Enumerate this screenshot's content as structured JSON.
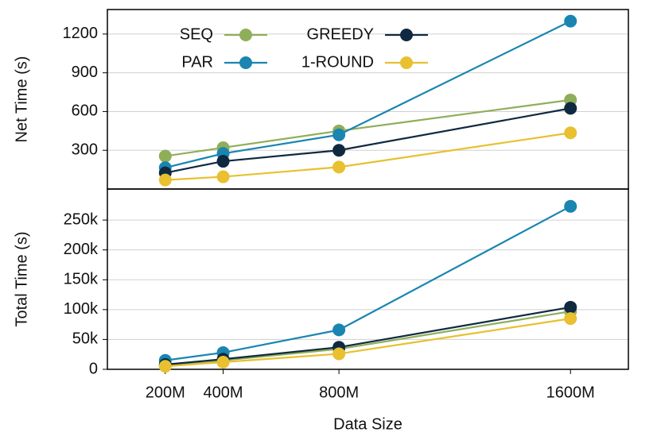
{
  "chart_data": [
    {
      "type": "line",
      "ylabel": "Net Time (s)",
      "x": [
        200,
        400,
        800,
        1600
      ],
      "xlim": [
        0,
        1800
      ],
      "ylim": [
        0,
        1390
      ],
      "yticks": [
        300,
        600,
        900,
        1200
      ],
      "grid": true,
      "legend": "top-left",
      "series": [
        {
          "name": "SEQ",
          "color": "#8fae5a",
          "values": [
            255,
            320,
            450,
            690
          ]
        },
        {
          "name": "PAR",
          "color": "#1a85b0",
          "values": [
            165,
            275,
            420,
            1300
          ]
        },
        {
          "name": "GREEDY",
          "color": "#0f2a40",
          "values": [
            125,
            215,
            300,
            625
          ]
        },
        {
          "name": "1-ROUND",
          "color": "#e8c030",
          "values": [
            70,
            95,
            170,
            435
          ]
        }
      ]
    },
    {
      "type": "line",
      "ylabel": "Total Time (s)",
      "xlabel": "Data Size",
      "x": [
        200,
        400,
        800,
        1600
      ],
      "xlim": [
        0,
        1800
      ],
      "xticks": [
        {
          "value": 200,
          "label": "200M"
        },
        {
          "value": 400,
          "label": "400M"
        },
        {
          "value": 800,
          "label": "800M"
        },
        {
          "value": 1600,
          "label": "1600M"
        }
      ],
      "ylim": [
        0,
        302000
      ],
      "grid": true,
      "yticks": [
        0,
        {
          "value": 50000,
          "label": "50k"
        },
        {
          "value": 100000,
          "label": "100k"
        },
        {
          "value": 150000,
          "label": "150k"
        },
        {
          "value": 200000,
          "label": "200k"
        },
        {
          "value": 250000,
          "label": "250k"
        }
      ],
      "series": [
        {
          "name": "SEQ",
          "color": "#8fae5a",
          "values": [
            7000,
            15000,
            34000,
            97000
          ]
        },
        {
          "name": "PAR",
          "color": "#1a85b0",
          "values": [
            15000,
            28000,
            66000,
            273000
          ]
        },
        {
          "name": "GREEDY",
          "color": "#0f2a40",
          "values": [
            8000,
            17000,
            37000,
            104000
          ]
        },
        {
          "name": "1-ROUND",
          "color": "#e8c030",
          "values": [
            5000,
            12000,
            26000,
            85000
          ]
        }
      ]
    }
  ]
}
